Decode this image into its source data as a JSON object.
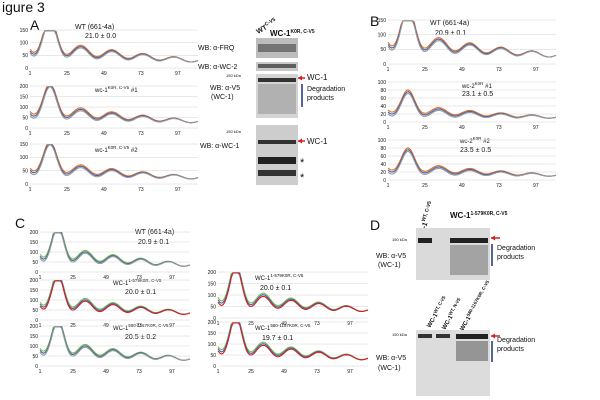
{
  "figure_title": "igure 3",
  "panels": {
    "A": {
      "label": "A",
      "charts": [
        {
          "title_line1": "WT (661-4a)",
          "period": "21.0 ± 0.0",
          "y_ticks": [
            "150",
            "100",
            "50",
            "0"
          ]
        },
        {
          "title_base": "wc-1",
          "title_sup": "K0R, C-V5",
          "title_suffix": " #1",
          "y_ticks": [
            "200",
            "150",
            "100",
            "50",
            "0"
          ]
        },
        {
          "title_base": "wc-1",
          "title_sup": "K0R, C-V5",
          "title_suffix": " #2",
          "y_ticks": [
            "150",
            "100",
            "50",
            "0"
          ]
        }
      ],
      "x_ticks": [
        "1",
        "25",
        "49",
        "73",
        "97"
      ],
      "blot_header_main": "WC-1",
      "blot_header_sup": "K0R, C-V5",
      "blot_header_wt": "WT",
      "blot_header_wt_sup": "C-V5",
      "blots": [
        {
          "label": "WB: α-FRQ"
        },
        {
          "label": "WB: α-WC-2"
        },
        {
          "label_line1": "WB: α-V5",
          "label_line2": "(WC-1)",
          "kda": "150 kDa"
        },
        {
          "label": "WB: α-WC-1",
          "kda": "150 kDa"
        }
      ],
      "annotations": {
        "wc1": "WC-1",
        "degradation_line1": "Degradation",
        "degradation_line2": "products",
        "wc1_lower": "WC-1",
        "star": "*"
      }
    },
    "B": {
      "label": "B",
      "charts": [
        {
          "title_line1": "WT (661-4a)",
          "period": "20.9 ± 0.1",
          "y_ticks": [
            "150",
            "100",
            "50",
            "0"
          ]
        },
        {
          "title_base": "wc-2",
          "title_sup": "K0R",
          "title_suffix": " #1",
          "period": "23.1 ± 0.5",
          "y_ticks": [
            "100",
            "80",
            "60",
            "40",
            "20",
            "0"
          ]
        },
        {
          "title_base": "wc-2",
          "title_sup": "K0R",
          "title_suffix": " #2",
          "period": "23.5 ± 0.5",
          "y_ticks": [
            "100",
            "80",
            "60",
            "40",
            "20",
            "0"
          ]
        }
      ],
      "x_ticks": [
        "1",
        "25",
        "49",
        "73",
        "97"
      ]
    },
    "C": {
      "label": "C",
      "charts": [
        {
          "title_line1": "WT (661-4a)",
          "period": "20.9 ± 0.1",
          "y_ticks": [
            "200",
            "150",
            "100",
            "50",
            "0"
          ]
        },
        {
          "title_base": "WC-1",
          "title_sup": "1-579K0R, C-V5",
          "period": "20.0 ± 0.1",
          "y_ticks": [
            "200",
            "150",
            "100",
            "50",
            "0"
          ]
        },
        {
          "title_base": "WC-1",
          "title_sup": "580-1167K0R, C-V5",
          "period": "20.5 ± 0.2",
          "y_ticks": [
            "200",
            "150",
            "100",
            "50",
            "0"
          ]
        },
        {
          "title_base": "WC-1",
          "title_sup": "1-579K0R, C-V5",
          "period": "20.0 ± 0.1",
          "y_ticks": [
            "200",
            "150",
            "100",
            "50",
            "0"
          ]
        },
        {
          "title_base": "WC-1",
          "title_sup": "580-1167K0R, C-V5",
          "period": "19.7 ± 0.1",
          "y_ticks": [
            "200",
            "150",
            "100",
            "50",
            "0"
          ]
        }
      ],
      "x_ticks": [
        "1",
        "25",
        "49",
        "73",
        "97"
      ]
    },
    "D": {
      "label": "D",
      "top_headers": {
        "wt": "WC-1",
        "wt_sup": "WT, C-V5",
        "mut": "WC-1",
        "mut_sup": "1-579K0R, C-V5"
      },
      "bottom_headers": [
        {
          "base": "WC-1",
          "sup": "WT, C-V5"
        },
        {
          "base": "WC-1",
          "sup": "WT, N-V5"
        },
        {
          "base": "WC-1",
          "sup": "580-1167K0R, C-V5"
        }
      ],
      "blots": [
        {
          "label_line1": "WB: α-V5",
          "label_line2": "(WC-1)",
          "kda": "150 kDa"
        },
        {
          "label_line1": "WB: α-V5",
          "label_line2": "(WC-1)",
          "kda": "150 kDa"
        }
      ],
      "annotations": {
        "degradation_line1": "Degradation",
        "degradation_line2": "products"
      }
    }
  },
  "colors": {
    "orange": "#e8711c",
    "blue": "#3f63b8",
    "gray": "#9a9a9a",
    "green": "#7fbf3f",
    "red": "#d62020",
    "navy": "#1f2f7a",
    "blot_bg": "#cfcfcf",
    "band": "#333333"
  }
}
